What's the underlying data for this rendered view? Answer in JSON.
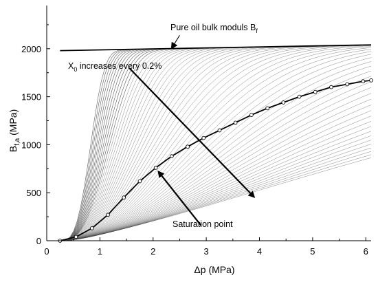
{
  "chart_data": {
    "type": "line",
    "xlabel": "Δp (MPa)",
    "ylabel": {
      "main": "B",
      "sub": "f,a",
      "unit": " (MPa)"
    },
    "xlim": [
      0,
      6.1
    ],
    "ylim": [
      0,
      2450
    ],
    "xticks": [
      0,
      1,
      2,
      3,
      4,
      5,
      6
    ],
    "yticks": [
      0,
      500,
      1000,
      1500,
      2000
    ],
    "grid": false,
    "curve_family": {
      "description_label": {
        "prefix": "X",
        "sub": "0",
        "suffix": " increases every 0.2%"
      },
      "x_start": 0.25,
      "x_end": 6.1,
      "count": 60,
      "shape_k_first": 1.55,
      "shape_k_last": 0.11,
      "shape_n_first": 3.2,
      "shape_n_last": 1.35,
      "color": "#4a4a4a"
    },
    "series": [
      {
        "name": "Pure oil bulk moduls B",
        "name_sub": "f",
        "x": [
          0.25,
          6.1
        ],
        "values": [
          1980,
          2040
        ],
        "color": "#000000"
      },
      {
        "name": "Saturation point",
        "x": [
          0.25,
          0.55,
          0.85,
          1.15,
          1.45,
          1.75,
          2.05,
          2.35,
          2.65,
          2.95,
          3.25,
          3.55,
          3.85,
          4.15,
          4.45,
          4.75,
          5.05,
          5.35,
          5.65,
          5.95,
          6.1
        ],
        "values": [
          0,
          40,
          130,
          270,
          450,
          620,
          760,
          880,
          980,
          1070,
          1150,
          1230,
          1310,
          1380,
          1440,
          1500,
          1550,
          1600,
          1630,
          1660,
          1670
        ],
        "markers": "open-circle",
        "color": "#000000"
      }
    ],
    "annotations": [
      {
        "text": "Pure oil bulk moduls B",
        "text_sub": "f",
        "arrow_from": [
          2.5,
          2140
        ],
        "arrow_to": [
          2.35,
          2005
        ]
      },
      {
        "text": "X0 increases every 0.2%",
        "arrow_from": [
          1.55,
          1800
        ],
        "arrow_to": [
          3.9,
          455
        ]
      },
      {
        "text": "Saturation point",
        "arrow_from": [
          2.9,
          160
        ],
        "arrow_to": [
          2.1,
          720
        ]
      }
    ]
  }
}
